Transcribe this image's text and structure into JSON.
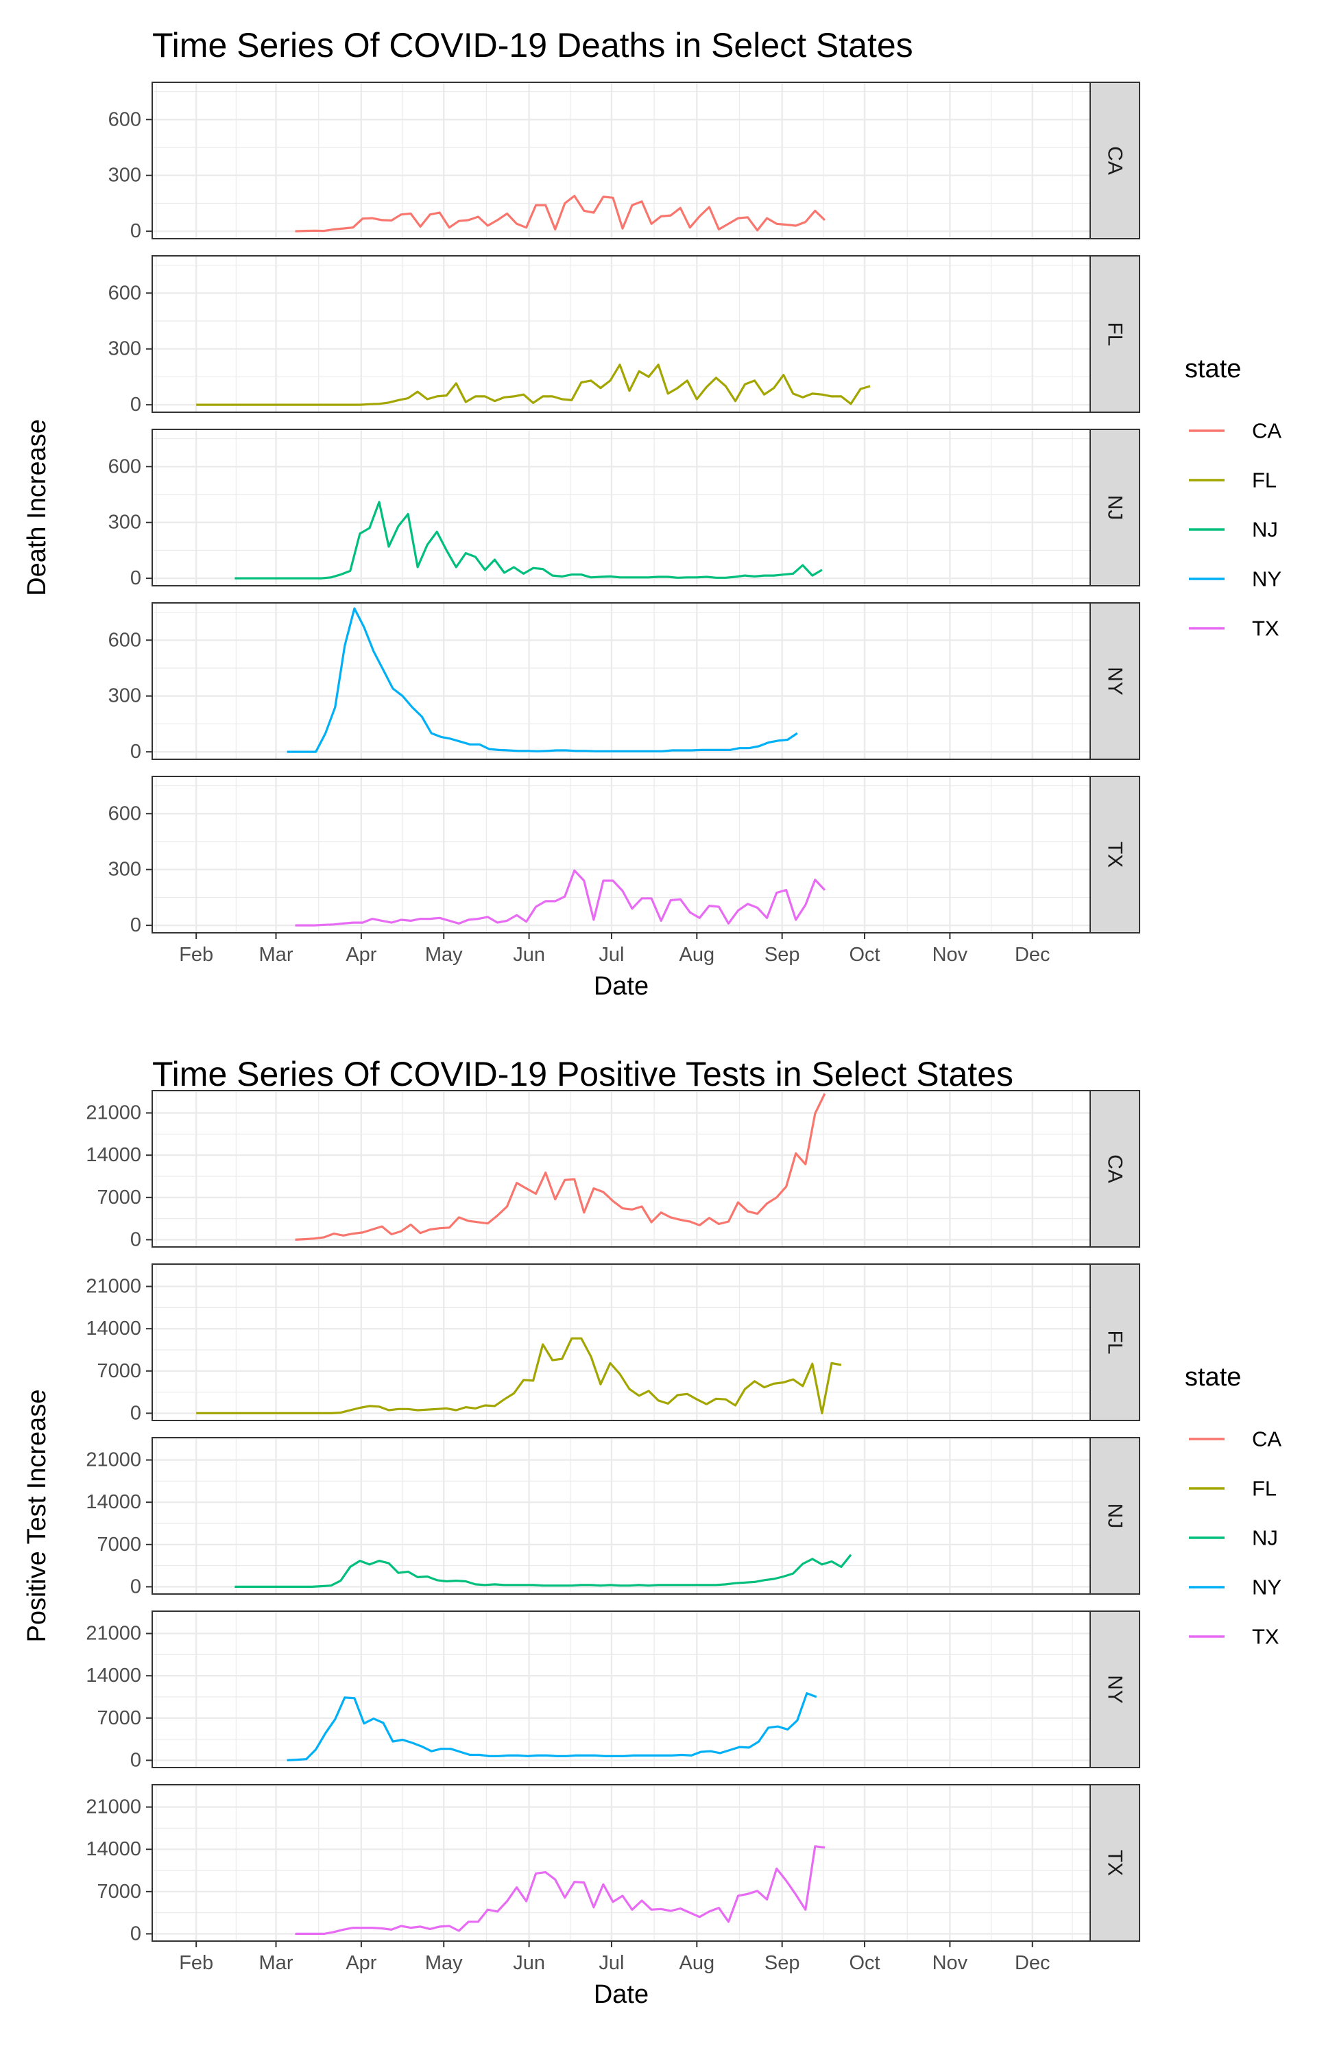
{
  "colors": {
    "CA": "#F8766D",
    "FL": "#A3A500",
    "NJ": "#00BF7D",
    "NY": "#00B0F6",
    "TX": "#E76BF3",
    "strip_fill": "#D9D9D9",
    "grid": "#EBEBEB"
  },
  "chart_data": [
    {
      "type": "line",
      "title": "Time Series Of COVID-19 Deaths in Select States",
      "xlabel": "Date",
      "ylabel": "Death Increase",
      "legend_title": "state",
      "legend_position": "right",
      "legend_entries": [
        "CA",
        "FL",
        "NJ",
        "NY",
        "TX"
      ],
      "facets": [
        "CA",
        "FL",
        "NJ",
        "NY",
        "TX"
      ],
      "x_ticks": [
        "Feb",
        "Mar",
        "Apr",
        "May",
        "Jun",
        "Jul",
        "Aug",
        "Sep",
        "Oct",
        "Nov",
        "Dec"
      ],
      "x_tick_dates": [
        "2020-02-01",
        "2020-03-01",
        "2020-04-01",
        "2020-05-01",
        "2020-06-01",
        "2020-07-01",
        "2020-08-01",
        "2020-09-01",
        "2020-10-01",
        "2020-11-01",
        "2020-12-01"
      ],
      "xlim": [
        "2020-01-16",
        "2020-12-22"
      ],
      "y_ticks": [
        0,
        300,
        600
      ],
      "y_tick_labels": [
        "0",
        "300",
        "600"
      ],
      "ylim": [
        -40,
        800
      ],
      "grid": true,
      "series": [
        {
          "name": "CA",
          "start": "2020-03-08",
          "step_days": 3.5,
          "values": [
            0,
            2,
            3,
            2,
            10,
            15,
            20,
            68,
            70,
            60,
            58,
            90,
            95,
            25,
            90,
            100,
            20,
            55,
            60,
            78,
            30,
            60,
            95,
            40,
            20,
            140,
            140,
            10,
            150,
            190,
            110,
            100,
            185,
            180,
            15,
            140,
            160,
            40,
            80,
            85,
            125,
            20,
            80,
            130,
            10,
            40,
            70,
            75,
            5,
            70,
            40,
            35,
            30,
            50,
            110,
            60
          ]
        },
        {
          "name": "FL",
          "start": "2020-02-01",
          "step_days": 3.5,
          "values": [
            0,
            0,
            0,
            0,
            0,
            0,
            0,
            0,
            0,
            0,
            0,
            0,
            0,
            0,
            0,
            0,
            0,
            0,
            3,
            5,
            12,
            25,
            35,
            70,
            30,
            45,
            50,
            115,
            15,
            45,
            45,
            20,
            40,
            45,
            55,
            10,
            45,
            45,
            30,
            25,
            120,
            130,
            90,
            130,
            215,
            75,
            180,
            150,
            215,
            60,
            90,
            130,
            30,
            95,
            145,
            100,
            20,
            110,
            130,
            55,
            90,
            160,
            60,
            40,
            60,
            55,
            45,
            45,
            5,
            85,
            100
          ]
        },
        {
          "name": "NJ",
          "start": "2020-02-15",
          "step_days": 3.5,
          "values": [
            0,
            0,
            0,
            0,
            0,
            0,
            0,
            0,
            0,
            0,
            5,
            20,
            40,
            240,
            270,
            410,
            170,
            280,
            345,
            60,
            180,
            250,
            150,
            60,
            135,
            115,
            45,
            100,
            30,
            60,
            25,
            55,
            50,
            15,
            10,
            20,
            20,
            5,
            8,
            10,
            5,
            5,
            5,
            5,
            8,
            8,
            3,
            5,
            5,
            8,
            3,
            3,
            8,
            15,
            10,
            15,
            15,
            20,
            25,
            70,
            15,
            45
          ]
        },
        {
          "name": "NY",
          "start": "2020-03-05",
          "step_days": 3.5,
          "values": [
            0,
            0,
            0,
            0,
            100,
            240,
            570,
            770,
            670,
            540,
            440,
            340,
            300,
            240,
            190,
            100,
            80,
            70,
            55,
            40,
            40,
            15,
            10,
            8,
            5,
            5,
            3,
            5,
            8,
            8,
            5,
            5,
            3,
            3,
            3,
            3,
            3,
            3,
            3,
            3,
            8,
            8,
            8,
            10,
            10,
            10,
            10,
            20,
            20,
            30,
            50,
            60,
            65,
            100
          ]
        },
        {
          "name": "TX",
          "start": "2020-03-08",
          "step_days": 3.5,
          "values": [
            0,
            0,
            0,
            3,
            5,
            10,
            15,
            15,
            35,
            25,
            15,
            30,
            25,
            35,
            35,
            40,
            25,
            10,
            30,
            35,
            45,
            15,
            25,
            55,
            20,
            100,
            130,
            130,
            155,
            295,
            240,
            30,
            240,
            240,
            185,
            90,
            145,
            145,
            25,
            135,
            140,
            70,
            40,
            105,
            100,
            10,
            80,
            115,
            95,
            40,
            175,
            190,
            30,
            110,
            245,
            190
          ]
        }
      ]
    },
    {
      "type": "line",
      "title": "Time Series Of COVID-19 Positive Tests in Select States",
      "xlabel": "Date",
      "ylabel": "Positive Test Increase",
      "legend_title": "state",
      "legend_position": "right",
      "legend_entries": [
        "CA",
        "FL",
        "NJ",
        "NY",
        "TX"
      ],
      "facets": [
        "CA",
        "FL",
        "NJ",
        "NY",
        "TX"
      ],
      "x_ticks": [
        "Feb",
        "Mar",
        "Apr",
        "May",
        "Jun",
        "Jul",
        "Aug",
        "Sep",
        "Oct",
        "Nov",
        "Dec"
      ],
      "x_tick_dates": [
        "2020-02-01",
        "2020-03-01",
        "2020-04-01",
        "2020-05-01",
        "2020-06-01",
        "2020-07-01",
        "2020-08-01",
        "2020-09-01",
        "2020-10-01",
        "2020-11-01",
        "2020-12-01"
      ],
      "xlim": [
        "2020-01-16",
        "2020-12-22"
      ],
      "y_ticks": [
        0,
        7000,
        14000,
        21000
      ],
      "y_tick_labels": [
        "0",
        "7000",
        "14000",
        "21000"
      ],
      "ylim": [
        -1200,
        24700
      ],
      "grid": true,
      "series": [
        {
          "name": "CA",
          "start": "2020-03-08",
          "step_days": 3.5,
          "values": [
            0,
            100,
            200,
            400,
            1000,
            700,
            1000,
            1200,
            1700,
            2200,
            900,
            1400,
            2500,
            1100,
            1700,
            1900,
            2000,
            3700,
            3100,
            2900,
            2700,
            4000,
            5500,
            9400,
            8500,
            7600,
            11100,
            6700,
            9900,
            10000,
            4500,
            8500,
            7900,
            6400,
            5200,
            5000,
            5500,
            2900,
            4500,
            3700,
            3300,
            3000,
            2400,
            3600,
            2600,
            3000,
            6200,
            4700,
            4300,
            6000,
            7000,
            8800,
            14300,
            12500,
            20900,
            24200
          ]
        },
        {
          "name": "FL",
          "start": "2020-02-01",
          "step_days": 3.5,
          "values": [
            0,
            0,
            0,
            0,
            0,
            0,
            0,
            0,
            0,
            0,
            0,
            0,
            0,
            0,
            0,
            100,
            500,
            900,
            1200,
            1100,
            500,
            700,
            700,
            500,
            600,
            700,
            800,
            500,
            1000,
            800,
            1300,
            1200,
            2300,
            3300,
            5500,
            5400,
            11400,
            8800,
            9000,
            12400,
            12400,
            9400,
            4800,
            8300,
            6500,
            4000,
            2900,
            3700,
            2100,
            1600,
            3000,
            3200,
            2300,
            1500,
            2400,
            2300,
            1300,
            4000,
            5300,
            4300,
            4900,
            5100,
            5600,
            4500,
            8200,
            0,
            8300,
            8000
          ]
        },
        {
          "name": "NJ",
          "start": "2020-02-15",
          "step_days": 3.5,
          "values": [
            0,
            0,
            0,
            0,
            0,
            0,
            0,
            0,
            0,
            100,
            200,
            1000,
            3300,
            4300,
            3700,
            4300,
            3900,
            2300,
            2500,
            1600,
            1700,
            1100,
            900,
            1000,
            900,
            400,
            300,
            400,
            300,
            300,
            300,
            300,
            200,
            200,
            200,
            200,
            300,
            300,
            200,
            300,
            200,
            200,
            300,
            200,
            300,
            300,
            300,
            300,
            300,
            300,
            300,
            400,
            600,
            700,
            800,
            1100,
            1300,
            1700,
            2200,
            3800,
            4600,
            3700,
            4200,
            3300,
            5300
          ]
        },
        {
          "name": "NY",
          "start": "2020-03-05",
          "step_days": 3.5,
          "values": [
            0,
            100,
            200,
            1800,
            4500,
            6800,
            10400,
            10300,
            6100,
            6900,
            6200,
            3100,
            3400,
            2900,
            2300,
            1500,
            1900,
            1900,
            1400,
            900,
            900,
            700,
            700,
            800,
            800,
            700,
            800,
            800,
            700,
            700,
            800,
            800,
            800,
            700,
            700,
            700,
            800,
            800,
            800,
            800,
            800,
            900,
            800,
            1400,
            1500,
            1200,
            1700,
            2200,
            2100,
            3100,
            5400,
            5600,
            5100,
            6600,
            11100,
            10500
          ]
        },
        {
          "name": "TX",
          "start": "2020-03-08",
          "step_days": 3.5,
          "values": [
            0,
            0,
            0,
            0,
            300,
            700,
            1000,
            1000,
            1000,
            900,
            700,
            1300,
            1000,
            1200,
            800,
            1200,
            1300,
            500,
            2000,
            2000,
            4000,
            3700,
            5400,
            7700,
            5400,
            10000,
            10200,
            9000,
            6000,
            8600,
            8500,
            4400,
            8200,
            5300,
            6300,
            4000,
            5500,
            4000,
            4100,
            3800,
            4200,
            3500,
            2800,
            3700,
            4300,
            2000,
            6300,
            6600,
            7100,
            5700,
            10800,
            8800,
            6500,
            4000,
            14500,
            14300
          ]
        }
      ]
    }
  ]
}
